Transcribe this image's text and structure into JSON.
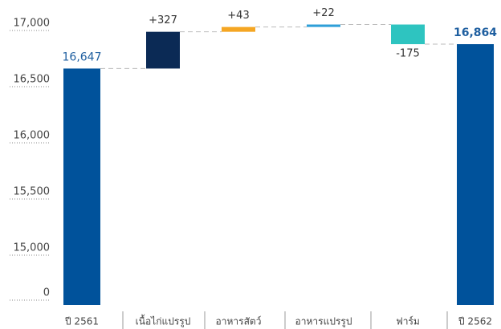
{
  "chart_data": {
    "type": "waterfall",
    "categories": [
      "ปี 2561",
      "เนื้อไก่แปรรูป",
      "อาหารสัตว์",
      "อาหารแปรรูป",
      "ฟาร์ม",
      "ปี 2562"
    ],
    "values": [
      16647,
      327,
      43,
      22,
      -175,
      16864
    ],
    "value_labels": [
      "16,647",
      "+327",
      "+43",
      "+22",
      "-175",
      "16,864"
    ],
    "totals": [
      true,
      false,
      false,
      false,
      false,
      true
    ],
    "colors": [
      "#00529b",
      "#0b2a55",
      "#f5a623",
      "#2e9fd8",
      "#2ec4c0",
      "#00529b"
    ],
    "ylim": [
      0,
      17000
    ],
    "yticks": [
      0,
      {
        "value": 15000,
        "label": "15,000"
      },
      {
        "value": 15500,
        "label": "15,500"
      },
      {
        "value": 16000,
        "label": "16,000"
      },
      {
        "value": 16500,
        "label": "16,500"
      },
      {
        "value": 17000,
        "label": "17,000"
      }
    ],
    "broken_axis": true
  }
}
